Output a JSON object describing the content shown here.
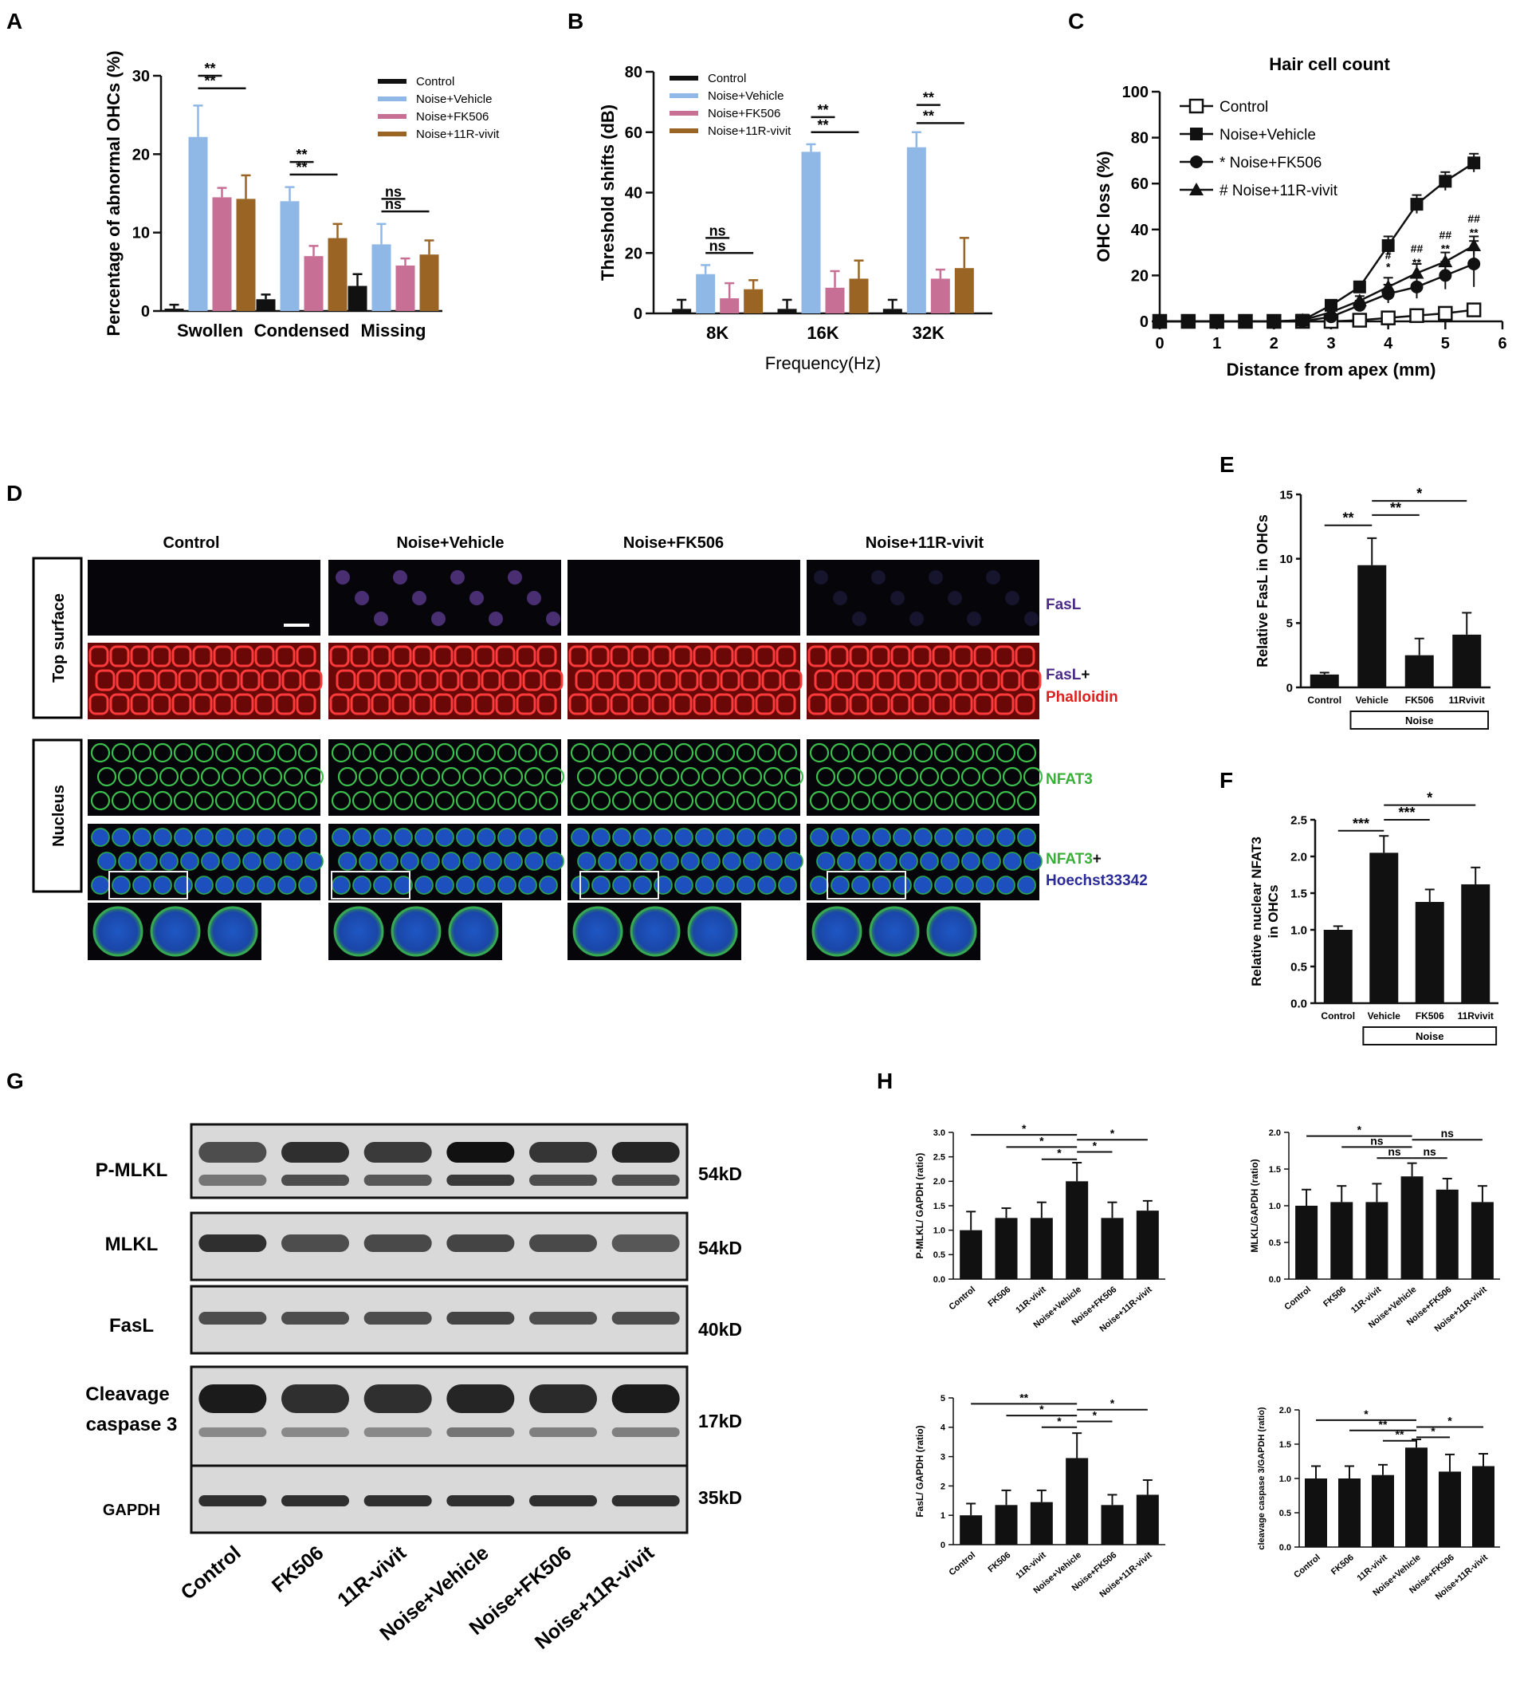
{
  "panel_letters": [
    "A",
    "B",
    "C",
    "D",
    "E",
    "F",
    "G",
    "H"
  ],
  "colors": {
    "control": "#111111",
    "vehicle": "#8fb8e6",
    "fk506": "#c86f96",
    "vivit": "#9a6424",
    "fasl_text": "#4b2a8a",
    "phalloidin_text": "#e02020",
    "nfat_text": "#38b038",
    "hoechst_text": "#2a2a9a"
  },
  "chart_data": [
    {
      "id": "A",
      "type": "bar",
      "ylabel": "Percentage of abnormal OHCs (%)",
      "xlabel": "",
      "ylim": [
        0,
        30
      ],
      "yticks": [
        "0",
        "10",
        "20",
        "30"
      ],
      "categories": [
        "Swollen",
        "Condensed",
        "Missing"
      ],
      "series": [
        {
          "name": "Control",
          "values": [
            0.3,
            1.5,
            3.2
          ],
          "errors": [
            0.5,
            0.6,
            1.5
          ]
        },
        {
          "name": "Noise+Vehicle",
          "values": [
            22.2,
            14.0,
            8.5
          ],
          "errors": [
            4.0,
            1.8,
            2.6
          ]
        },
        {
          "name": "Noise+FK506",
          "values": [
            14.5,
            7.0,
            5.8
          ],
          "errors": [
            1.2,
            1.3,
            0.9
          ]
        },
        {
          "name": "Noise+11R-vivit",
          "values": [
            14.3,
            9.3,
            7.2
          ],
          "errors": [
            3.0,
            1.8,
            1.8
          ]
        }
      ],
      "annotations": [
        {
          "text": "**",
          "cat": 0,
          "from": 1,
          "to": 2,
          "level": 30
        },
        {
          "text": "**",
          "cat": 0,
          "from": 1,
          "to": 3,
          "level": 28.4
        },
        {
          "text": "**",
          "cat": 1,
          "from": 1,
          "to": 2,
          "level": 19
        },
        {
          "text": "**",
          "cat": 1,
          "from": 1,
          "to": 3,
          "level": 17.4
        },
        {
          "text": "ns",
          "cat": 2,
          "from": 1,
          "to": 2,
          "level": 14.3
        },
        {
          "text": "ns",
          "cat": 2,
          "from": 1,
          "to": 3,
          "level": 12.7
        }
      ]
    },
    {
      "id": "B",
      "type": "bar",
      "ylabel": "Threshold shifts (dB)",
      "xlabel": "Frequency(Hz)",
      "ylim": [
        0,
        80
      ],
      "yticks": [
        "0",
        "20",
        "40",
        "60",
        "80"
      ],
      "categories": [
        "8K",
        "16K",
        "32K"
      ],
      "series": [
        {
          "name": "Control",
          "values": [
            1.5,
            1.5,
            1.5
          ],
          "errors": [
            3.0,
            3.0,
            3.0
          ]
        },
        {
          "name": "Noise+Vehicle",
          "values": [
            13.0,
            53.5,
            55.0
          ],
          "errors": [
            3.0,
            2.5,
            5.0
          ]
        },
        {
          "name": "Noise+FK506",
          "values": [
            5.0,
            8.5,
            11.5
          ],
          "errors": [
            5.0,
            5.5,
            3.0
          ]
        },
        {
          "name": "Noise+11R-vivit",
          "values": [
            8.0,
            11.5,
            15.0
          ],
          "errors": [
            3.0,
            6.0,
            10.0
          ]
        }
      ],
      "annotations": [
        {
          "text": "ns",
          "cat": 0,
          "from": 1,
          "to": 2,
          "level": 25
        },
        {
          "text": "ns",
          "cat": 0,
          "from": 1,
          "to": 3,
          "level": 20
        },
        {
          "text": "**",
          "cat": 1,
          "from": 1,
          "to": 2,
          "level": 65
        },
        {
          "text": "**",
          "cat": 1,
          "from": 1,
          "to": 3,
          "level": 60
        },
        {
          "text": "**",
          "cat": 2,
          "from": 1,
          "to": 2,
          "level": 69
        },
        {
          "text": "**",
          "cat": 2,
          "from": 1,
          "to": 3,
          "level": 63
        }
      ]
    },
    {
      "id": "C",
      "type": "line",
      "title": "Hair cell count",
      "ylabel": "OHC loss (%)",
      "xlabel": "Distance from apex (mm)",
      "xlim": [
        0,
        6
      ],
      "ylim": [
        0,
        100
      ],
      "xticks": [
        "0",
        "1",
        "2",
        "3",
        "4",
        "5",
        "6"
      ],
      "yticks": [
        "0",
        "20",
        "40",
        "60",
        "80",
        "100"
      ],
      "series": [
        {
          "name": "Control",
          "marker": "open-square",
          "x": [
            0,
            0.5,
            1,
            1.5,
            2,
            2.5,
            3,
            3.5,
            4,
            4.5,
            5,
            5.5
          ],
          "y": [
            0,
            0,
            0,
            0,
            0,
            0,
            0,
            0.5,
            1.5,
            2.5,
            3.5,
            5
          ],
          "errors": [
            0,
            0,
            0,
            0,
            0,
            0,
            0.5,
            0.5,
            1,
            1,
            1,
            1.5
          ]
        },
        {
          "name": "Noise+Vehicle",
          "marker": "filled-square",
          "x": [
            0,
            0.5,
            1,
            1.5,
            2,
            2.5,
            3,
            3.5,
            4,
            4.5,
            5,
            5.5
          ],
          "y": [
            0,
            0,
            0,
            0,
            0,
            0.5,
            7,
            15,
            33,
            51,
            61,
            69
          ],
          "errors": [
            0,
            0,
            0,
            0,
            0,
            0.5,
            1.5,
            2,
            4,
            4,
            4,
            4
          ]
        },
        {
          "name": "* Noise+FK506",
          "marker": "filled-circle",
          "x": [
            0,
            0.5,
            1,
            1.5,
            2,
            2.5,
            3,
            3.5,
            4,
            4.5,
            5,
            5.5
          ],
          "y": [
            0,
            0,
            0,
            0,
            0,
            0,
            2,
            7,
            12,
            15,
            20,
            25
          ],
          "errors": [
            0,
            0,
            0,
            0,
            0,
            0,
            1,
            2,
            4,
            5,
            6,
            10
          ]
        },
        {
          "name": "# Noise+11R-vivit",
          "marker": "filled-triangle",
          "x": [
            0,
            0.5,
            1,
            1.5,
            2,
            2.5,
            3,
            3.5,
            4,
            4.5,
            5,
            5.5
          ],
          "y": [
            0,
            0,
            0,
            0,
            0,
            0.5,
            4,
            9,
            15,
            21,
            26,
            33
          ],
          "errors": [
            0,
            0,
            0,
            0,
            0,
            0.5,
            1,
            2,
            4,
            4,
            4,
            4
          ]
        }
      ],
      "annotations": [
        {
          "x": 4,
          "y": 22,
          "text": "*"
        },
        {
          "x": 4,
          "y": 27,
          "text": "#"
        },
        {
          "x": 4.5,
          "y": 24,
          "text": "**"
        },
        {
          "x": 4.5,
          "y": 30,
          "text": "##"
        },
        {
          "x": 5,
          "y": 30,
          "text": "**"
        },
        {
          "x": 5,
          "y": 36,
          "text": "##"
        },
        {
          "x": 5.5,
          "y": 37,
          "text": "**"
        },
        {
          "x": 5.5,
          "y": 43,
          "text": "##"
        }
      ]
    },
    {
      "id": "E",
      "type": "bar",
      "ylabel": "Relative FasL in OHCs",
      "ylim": [
        0,
        15
      ],
      "yticks": [
        "0",
        "5",
        "10",
        "15"
      ],
      "categories": [
        "Control",
        "Vehicle",
        "FK506",
        "11Rvivit"
      ],
      "group_label": "Noise",
      "values": [
        1.0,
        9.5,
        2.5,
        4.1
      ],
      "errors": [
        0.15,
        2.1,
        1.3,
        1.7
      ],
      "annotations": [
        {
          "text": "**",
          "from": 0,
          "to": 1,
          "level": 12.6
        },
        {
          "text": "**",
          "from": 1,
          "to": 2,
          "level": 13.4
        },
        {
          "text": "*",
          "from": 1,
          "to": 3,
          "level": 14.5
        }
      ]
    },
    {
      "id": "F",
      "type": "bar",
      "ylabel": "Relative nuclear NFAT3 in OHCs",
      "ylim": [
        0,
        2.5
      ],
      "yticks": [
        "0.0",
        "0.5",
        "1.0",
        "1.5",
        "2.0",
        "2.5"
      ],
      "categories": [
        "Control",
        "Vehicle",
        "FK506",
        "11Rvivit"
      ],
      "group_label": "Noise",
      "values": [
        1.0,
        2.05,
        1.38,
        1.62
      ],
      "errors": [
        0.05,
        0.23,
        0.17,
        0.23
      ],
      "annotations": [
        {
          "text": "***",
          "from": 0,
          "to": 1,
          "level": 2.35
        },
        {
          "text": "***",
          "from": 1,
          "to": 2,
          "level": 2.5
        },
        {
          "text": "*",
          "from": 1,
          "to": 3,
          "level": 2.7
        }
      ]
    },
    {
      "id": "H1",
      "type": "bar",
      "ylabel": "P-MLKL/ GAPDH (ratio)",
      "ylim": [
        0,
        3
      ],
      "yticks": [
        "0.0",
        "0.5",
        "1.0",
        "1.5",
        "2.0",
        "2.5",
        "3.0"
      ],
      "categories": [
        "Control",
        "FK506",
        "11R-vivit",
        "Noise+Vehicle",
        "Noise+FK506",
        "Noise+11R-vivit"
      ],
      "values": [
        1.0,
        1.25,
        1.25,
        2.0,
        1.25,
        1.4
      ],
      "errors": [
        0.38,
        0.2,
        0.32,
        0.38,
        0.32,
        0.2
      ],
      "annotations": [
        {
          "text": "*",
          "from": 0,
          "to": 3,
          "level": 2.95
        },
        {
          "text": "*",
          "from": 1,
          "to": 3,
          "level": 2.7
        },
        {
          "text": "*",
          "from": 2,
          "to": 3,
          "level": 2.45
        },
        {
          "text": "*",
          "from": 3,
          "to": 5,
          "level": 2.85
        },
        {
          "text": "*",
          "from": 3,
          "to": 4,
          "level": 2.6
        }
      ]
    },
    {
      "id": "H2",
      "type": "bar",
      "ylabel": "MLKL/GAPDH (ratio)",
      "ylim": [
        0,
        2
      ],
      "yticks": [
        "0.0",
        "0.5",
        "1.0",
        "1.5",
        "2.0"
      ],
      "categories": [
        "Control",
        "FK506",
        "11R-vivit",
        "Noise+Vehicle",
        "Noise+FK506",
        "Noise+11R-vivit"
      ],
      "values": [
        1.0,
        1.05,
        1.05,
        1.4,
        1.22,
        1.05
      ],
      "errors": [
        0.22,
        0.22,
        0.25,
        0.18,
        0.15,
        0.22
      ],
      "annotations": [
        {
          "text": "*",
          "from": 0,
          "to": 3,
          "level": 1.95
        },
        {
          "text": "ns",
          "from": 1,
          "to": 3,
          "level": 1.8
        },
        {
          "text": "ns",
          "from": 2,
          "to": 3,
          "level": 1.65
        },
        {
          "text": "ns",
          "from": 3,
          "to": 5,
          "level": 1.9
        },
        {
          "text": "ns",
          "from": 3,
          "to": 4,
          "level": 1.65
        }
      ]
    },
    {
      "id": "H3",
      "type": "bar",
      "ylabel": "FasL/ GAPDH (ratio)",
      "ylim": [
        0,
        5
      ],
      "yticks": [
        "0",
        "1",
        "2",
        "3",
        "4",
        "5"
      ],
      "categories": [
        "Control",
        "FK506",
        "11R-vivit",
        "Noise+Vehicle",
        "Noise+FK506",
        "Noise+11R-vivit"
      ],
      "values": [
        1.0,
        1.35,
        1.45,
        2.95,
        1.35,
        1.7
      ],
      "errors": [
        0.4,
        0.5,
        0.4,
        0.85,
        0.35,
        0.5
      ],
      "annotations": [
        {
          "text": "**",
          "from": 0,
          "to": 3,
          "level": 4.8
        },
        {
          "text": "*",
          "from": 1,
          "to": 3,
          "level": 4.4
        },
        {
          "text": "*",
          "from": 2,
          "to": 3,
          "level": 4.0
        },
        {
          "text": "*",
          "from": 3,
          "to": 5,
          "level": 4.6
        },
        {
          "text": "*",
          "from": 3,
          "to": 4,
          "level": 4.2
        }
      ]
    },
    {
      "id": "H4",
      "type": "bar",
      "ylabel": "cleavage caspase 3/GAPDH (ratio)",
      "ylim": [
        0,
        2
      ],
      "yticks": [
        "0.0",
        "0.5",
        "1.0",
        "1.5",
        "2.0"
      ],
      "categories": [
        "Control",
        "FK506",
        "11R-vivit",
        "Noise+Vehicle",
        "Noise+FK506",
        "Noise+11R-vivit"
      ],
      "values": [
        1.0,
        1.0,
        1.05,
        1.45,
        1.1,
        1.18
      ],
      "errors": [
        0.18,
        0.18,
        0.15,
        0.12,
        0.25,
        0.18
      ],
      "annotations": [
        {
          "text": "*",
          "from": 0,
          "to": 3,
          "level": 1.85
        },
        {
          "text": "**",
          "from": 1,
          "to": 3,
          "level": 1.7
        },
        {
          "text": "**",
          "from": 2,
          "to": 3,
          "level": 1.55
        },
        {
          "text": "*",
          "from": 3,
          "to": 5,
          "level": 1.75
        },
        {
          "text": "*",
          "from": 3,
          "to": 4,
          "level": 1.6
        }
      ]
    }
  ],
  "panel_d": {
    "columns": [
      "Control",
      "Noise+Vehicle",
      "Noise+FK506",
      "Noise+11R-vivit"
    ],
    "row_groups": [
      "Top surface",
      "Nucleus"
    ],
    "stains": {
      "fasl": "FasL",
      "fasl_phal_1": "FasL",
      "plus": "+",
      "fasl_phal_2": "Phalloidin",
      "nfat": "NFAT3",
      "nfat_h_1": "NFAT3",
      "nfat_h_2": "Hoechst33342"
    }
  },
  "panel_g": {
    "bands": [
      {
        "label": "P-MLKL",
        "kd": "54kD"
      },
      {
        "label": "MLKL",
        "kd": "54kD"
      },
      {
        "label": "FasL",
        "kd": "40kD"
      },
      {
        "label": "Cleavage caspase 3",
        "kd": "17kD"
      },
      {
        "label": "GAPDH",
        "kd": "35kD"
      }
    ],
    "lanes": [
      "Control",
      "FK506",
      "11R-vivit",
      "Noise+Vehicle",
      "Noise+FK506",
      "Noise+11R-vivit"
    ]
  }
}
